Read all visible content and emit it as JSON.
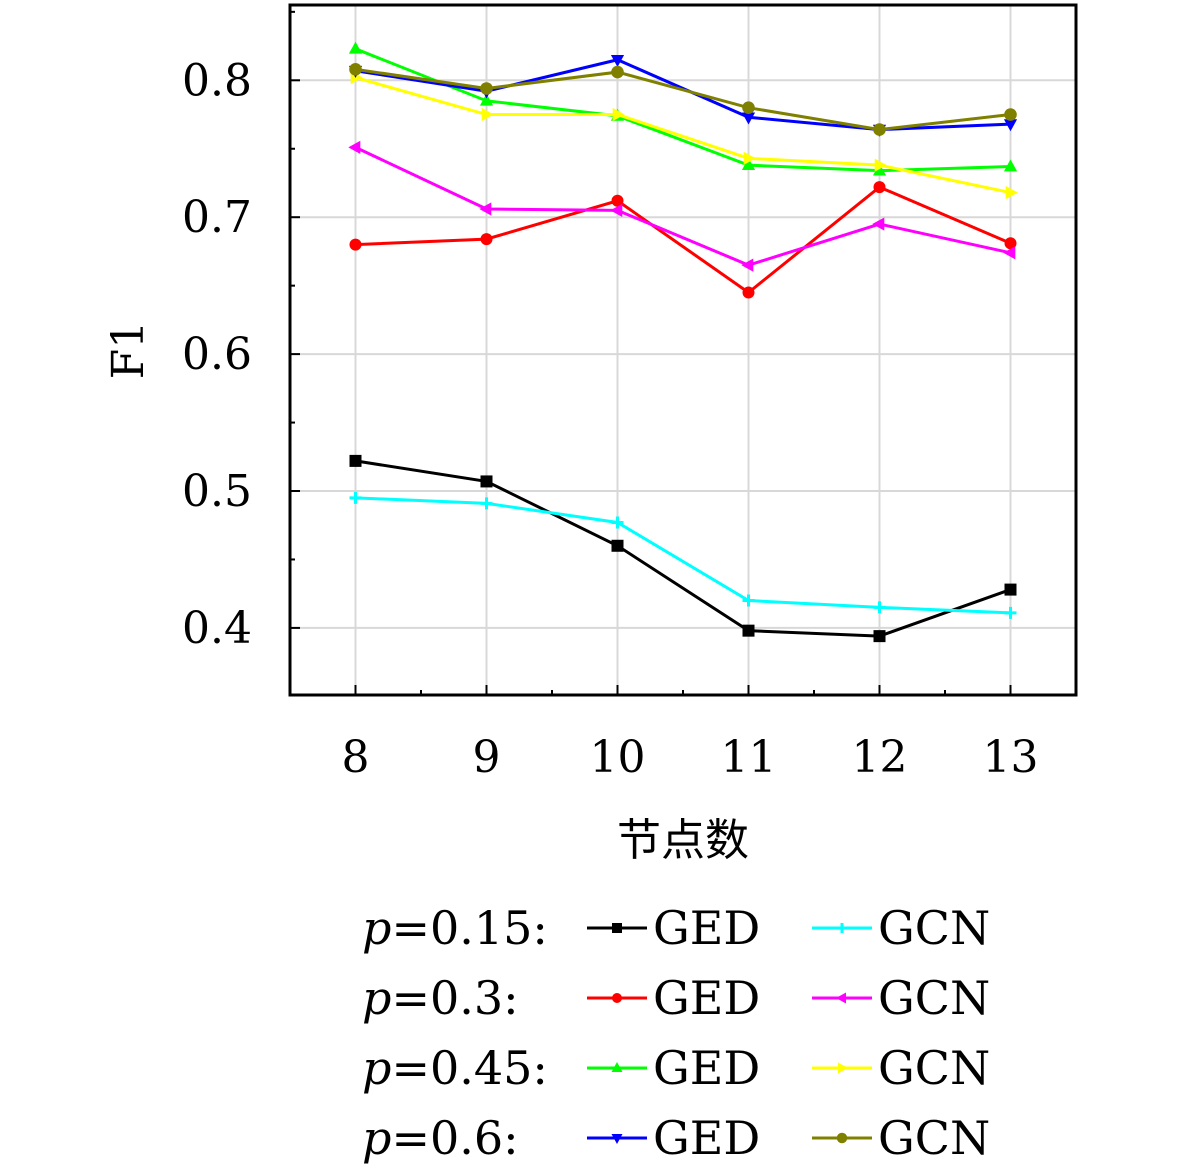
{
  "chart_data": {
    "type": "line",
    "title": "",
    "xlabel": "节点数",
    "ylabel": "F1",
    "x": [
      8,
      9,
      10,
      11,
      12,
      13
    ],
    "xticks": [
      "8",
      "9",
      "10",
      "11",
      "12",
      "13"
    ],
    "yticks": [
      "0.4",
      "0.5",
      "0.6",
      "0.7",
      "0.8"
    ],
    "ytick_values": [
      0.4,
      0.5,
      0.6,
      0.7,
      0.8
    ],
    "xlim": [
      7.5,
      13.5
    ],
    "ylim": [
      0.351,
      0.855
    ],
    "grid": true,
    "legend_position": "bottom",
    "series": [
      {
        "name": "GED",
        "group": "p=0.15",
        "color": "#000000",
        "marker": "square",
        "values": [
          0.522,
          0.507,
          0.46,
          0.398,
          0.394,
          0.428
        ]
      },
      {
        "name": "GCN",
        "group": "p=0.15",
        "color": "#00ffff",
        "marker": "plus",
        "values": [
          0.495,
          0.491,
          0.477,
          0.42,
          0.415,
          0.411
        ]
      },
      {
        "name": "GED",
        "group": "p=0.3",
        "color": "#ff0000",
        "marker": "circle",
        "values": [
          0.68,
          0.684,
          0.712,
          0.645,
          0.722,
          0.681
        ]
      },
      {
        "name": "GCN",
        "group": "p=0.3",
        "color": "#ff00ff",
        "marker": "triangle-left",
        "values": [
          0.751,
          0.706,
          0.705,
          0.665,
          0.695,
          0.674
        ]
      },
      {
        "name": "GED",
        "group": "p=0.45",
        "color": "#00ff00",
        "marker": "triangle-up",
        "values": [
          0.823,
          0.785,
          0.774,
          0.738,
          0.734,
          0.737
        ]
      },
      {
        "name": "GCN",
        "group": "p=0.45",
        "color": "#ffff00",
        "marker": "triangle-right",
        "values": [
          0.802,
          0.775,
          0.775,
          0.743,
          0.738,
          0.718
        ]
      },
      {
        "name": "GED",
        "group": "p=0.6",
        "color": "#0000ff",
        "marker": "triangle-down",
        "values": [
          0.807,
          0.792,
          0.815,
          0.773,
          0.764,
          0.768
        ]
      },
      {
        "name": "GCN",
        "group": "p=0.6",
        "color": "#808000",
        "marker": "diamond",
        "values": [
          0.808,
          0.794,
          0.806,
          0.78,
          0.764,
          0.775
        ]
      }
    ]
  },
  "legend": {
    "rows": [
      {
        "var": "p",
        "value": "=0.15:",
        "items": [
          {
            "label": "GED",
            "series": 0
          },
          {
            "label": "GCN",
            "series": 1
          }
        ]
      },
      {
        "var": "p",
        "value": "=0.3:",
        "items": [
          {
            "label": "GED",
            "series": 2
          },
          {
            "label": "GCN",
            "series": 3
          }
        ]
      },
      {
        "var": "p",
        "value": "=0.45:",
        "items": [
          {
            "label": "GED",
            "series": 4
          },
          {
            "label": "GCN",
            "series": 5
          }
        ]
      },
      {
        "var": "p",
        "value": "=0.6:",
        "items": [
          {
            "label": "GED",
            "series": 6
          },
          {
            "label": "GCN",
            "series": 7
          }
        ]
      }
    ]
  }
}
